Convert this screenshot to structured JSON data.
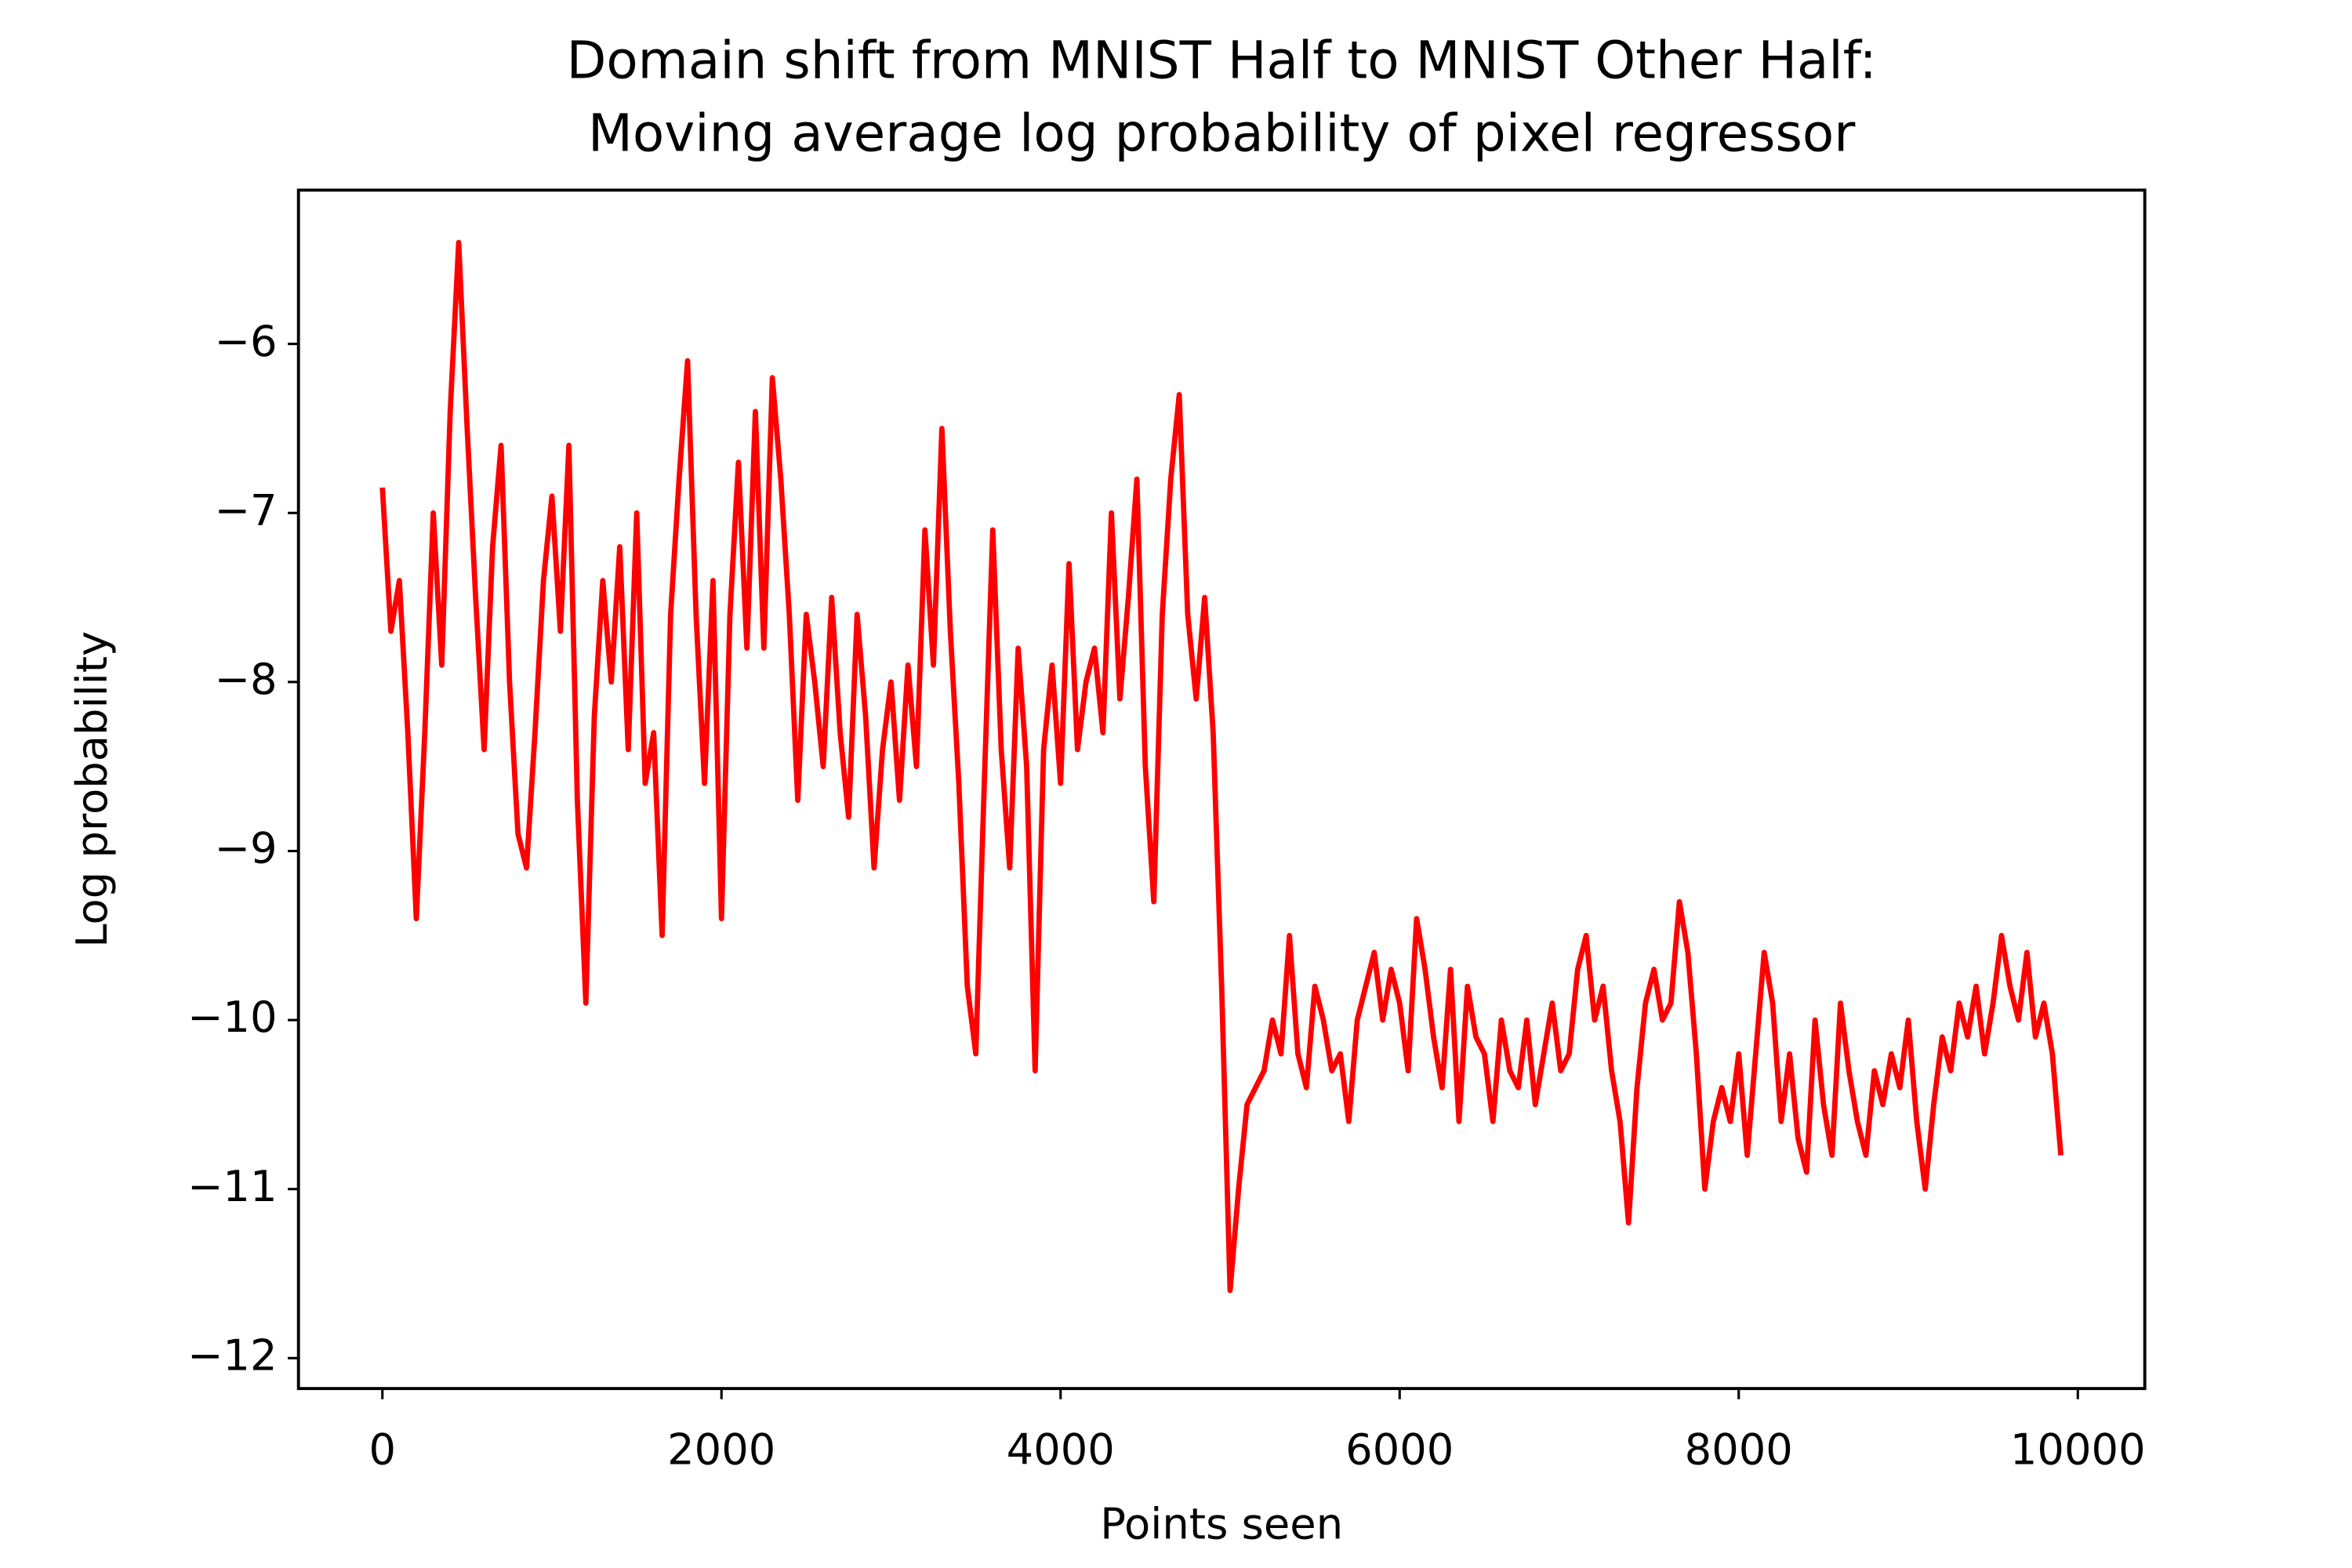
{
  "chart_data": {
    "type": "line",
    "title": [
      "Domain shift from MNIST Half to MNIST Other Half:",
      "Moving average log probability of pixel regressor"
    ],
    "xlabel": "Points seen",
    "ylabel": "Log probability",
    "xlim": [
      -495,
      10395
    ],
    "ylim": [
      -12.18,
      -5.09
    ],
    "xticks": [
      0,
      2000,
      4000,
      6000,
      8000,
      10000
    ],
    "yticks": [
      {
        "value": -6,
        "label": "−6"
      },
      {
        "value": -7,
        "label": "−7"
      },
      {
        "value": -8,
        "label": "−8"
      },
      {
        "value": -9,
        "label": "−9"
      },
      {
        "value": -10,
        "label": "−10"
      },
      {
        "value": -11,
        "label": "−11"
      },
      {
        "value": -12,
        "label": "−12"
      }
    ],
    "grid": false,
    "series": [
      {
        "color": "#ff0000",
        "x": [
          0,
          50,
          100,
          150,
          200,
          250,
          300,
          350,
          400,
          450,
          500,
          550,
          600,
          650,
          700,
          750,
          800,
          850,
          900,
          950,
          1000,
          1050,
          1100,
          1150,
          1200,
          1250,
          1300,
          1350,
          1400,
          1450,
          1500,
          1550,
          1600,
          1650,
          1700,
          1750,
          1800,
          1850,
          1900,
          1950,
          2000,
          2050,
          2100,
          2150,
          2200,
          2250,
          2300,
          2350,
          2400,
          2450,
          2500,
          2550,
          2600,
          2650,
          2700,
          2750,
          2800,
          2850,
          2900,
          2950,
          3000,
          3050,
          3100,
          3150,
          3200,
          3250,
          3300,
          3350,
          3400,
          3450,
          3500,
          3550,
          3600,
          3650,
          3700,
          3750,
          3800,
          3850,
          3900,
          3950,
          4000,
          4050,
          4100,
          4150,
          4200,
          4250,
          4300,
          4350,
          4400,
          4450,
          4500,
          4550,
          4600,
          4650,
          4700,
          4750,
          4800,
          4850,
          4900,
          4950,
          5000,
          5050,
          5100,
          5150,
          5200,
          5250,
          5300,
          5350,
          5400,
          5450,
          5500,
          5550,
          5600,
          5650,
          5700,
          5750,
          5800,
          5850,
          5900,
          5950,
          6000,
          6050,
          6100,
          6150,
          6200,
          6250,
          6300,
          6350,
          6400,
          6450,
          6500,
          6550,
          6600,
          6650,
          6700,
          6750,
          6800,
          6850,
          6900,
          6950,
          7000,
          7050,
          7100,
          7150,
          7200,
          7250,
          7300,
          7350,
          7400,
          7450,
          7500,
          7550,
          7600,
          7650,
          7700,
          7750,
          7800,
          7850,
          7900,
          7950,
          8000,
          8050,
          8100,
          8150,
          8200,
          8250,
          8300,
          8350,
          8400,
          8450,
          8500,
          8550,
          8600,
          8650,
          8700,
          8750,
          8800,
          8850,
          8900,
          8950,
          9000,
          9050,
          9100,
          9150,
          9200,
          9250,
          9300,
          9350,
          9400,
          9450,
          9500,
          9550,
          9600,
          9650,
          9700,
          9750,
          9800,
          9850,
          9900
        ],
        "values": [
          -6.85,
          -7.7,
          -7.4,
          -8.3,
          -9.4,
          -8.3,
          -7.0,
          -7.9,
          -6.4,
          -5.4,
          -6.5,
          -7.5,
          -8.4,
          -7.2,
          -6.6,
          -8.0,
          -8.9,
          -9.1,
          -8.3,
          -7.4,
          -6.9,
          -7.7,
          -6.6,
          -8.7,
          -9.9,
          -8.2,
          -7.4,
          -8.0,
          -7.2,
          -8.4,
          -7.0,
          -8.6,
          -8.3,
          -9.5,
          -7.6,
          -6.8,
          -6.1,
          -7.6,
          -8.6,
          -7.4,
          -9.4,
          -7.6,
          -6.7,
          -7.8,
          -6.4,
          -7.8,
          -6.2,
          -6.8,
          -7.6,
          -8.7,
          -7.6,
          -8.0,
          -8.5,
          -7.5,
          -8.3,
          -8.8,
          -7.6,
          -8.2,
          -9.1,
          -8.4,
          -8.0,
          -8.7,
          -7.9,
          -8.5,
          -7.1,
          -7.9,
          -6.5,
          -7.7,
          -8.6,
          -9.8,
          -10.2,
          -8.6,
          -7.1,
          -8.4,
          -9.1,
          -7.8,
          -8.5,
          -10.3,
          -8.4,
          -7.9,
          -8.6,
          -7.3,
          -8.4,
          -8.0,
          -7.8,
          -8.3,
          -7.0,
          -8.1,
          -7.5,
          -6.8,
          -8.5,
          -9.3,
          -7.6,
          -6.8,
          -6.3,
          -7.6,
          -8.1,
          -7.5,
          -8.3,
          -9.8,
          -11.6,
          -11.0,
          -10.5,
          -10.4,
          -10.3,
          -10.0,
          -10.2,
          -9.5,
          -10.2,
          -10.4,
          -9.8,
          -10.0,
          -10.3,
          -10.2,
          -10.6,
          -10.0,
          -9.8,
          -9.6,
          -10.0,
          -9.7,
          -9.9,
          -10.3,
          -9.4,
          -9.7,
          -10.1,
          -10.4,
          -9.7,
          -10.6,
          -9.8,
          -10.1,
          -10.2,
          -10.6,
          -10.0,
          -10.3,
          -10.4,
          -10.0,
          -10.5,
          -10.2,
          -9.9,
          -10.3,
          -10.2,
          -9.7,
          -9.5,
          -10.0,
          -9.8,
          -10.3,
          -10.6,
          -11.2,
          -10.4,
          -9.9,
          -9.7,
          -10.0,
          -9.9,
          -9.3,
          -9.6,
          -10.2,
          -11.0,
          -10.6,
          -10.4,
          -10.6,
          -10.2,
          -10.8,
          -10.2,
          -9.6,
          -9.9,
          -10.6,
          -10.2,
          -10.7,
          -10.9,
          -10.0,
          -10.5,
          -10.8,
          -9.9,
          -10.3,
          -10.6,
          -10.8,
          -10.3,
          -10.5,
          -10.2,
          -10.4,
          -10.0,
          -10.6,
          -11.0,
          -10.5,
          -10.1,
          -10.3,
          -9.9,
          -10.1,
          -9.8,
          -10.2,
          -9.9,
          -9.5,
          -9.8,
          -10.0,
          -9.6,
          -10.1,
          -9.9,
          -10.2,
          -10.8
        ]
      }
    ]
  }
}
